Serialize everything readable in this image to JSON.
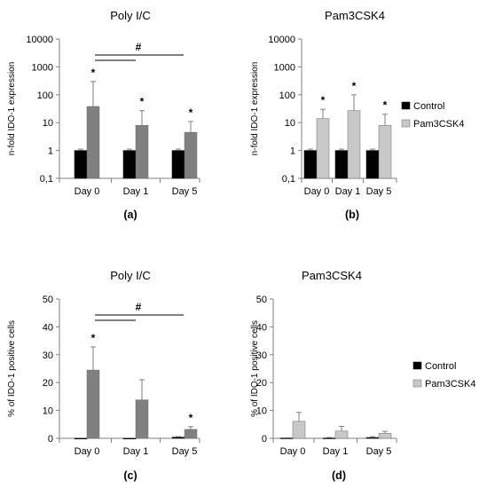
{
  "chart_data": [
    {
      "type": "bar",
      "panel_label": "(a)",
      "title": "Poly I/C",
      "ylabel": "n-fold IDO-1 expression",
      "scale": "log",
      "ylim": [
        0.1,
        10000
      ],
      "yticks": [
        0.1,
        1,
        10,
        100,
        1000,
        10000
      ],
      "ytick_labels": [
        "0,1",
        "1",
        "10",
        "100",
        "1000",
        "10000"
      ],
      "categories": [
        "Day 0",
        "Day 1",
        "Day 5"
      ],
      "series": [
        {
          "values": [
            1,
            1,
            1
          ],
          "errors": [
            1.12,
            1.12,
            1.12
          ],
          "color": "#000000"
        },
        {
          "values": [
            38,
            8,
            4.5
          ],
          "errors": [
            300,
            27,
            11
          ],
          "color": "#808080"
        }
      ],
      "significance_markers": [
        "*",
        "*",
        "*"
      ],
      "comparison_label": "#",
      "legend": null
    },
    {
      "type": "bar",
      "panel_label": "(b)",
      "title": "Pam3CSK4",
      "ylabel": "n-fold IDO-1 expression",
      "scale": "log",
      "ylim": [
        0.1,
        10000
      ],
      "yticks": [
        0.1,
        1,
        10,
        100,
        1000,
        10000
      ],
      "ytick_labels": [
        "0,1",
        "1",
        "10",
        "100",
        "1000",
        "10000"
      ],
      "categories": [
        "Day 0",
        "Day 1",
        "Day 5"
      ],
      "series": [
        {
          "name": "Control",
          "values": [
            1,
            1,
            1
          ],
          "errors": [
            1.12,
            1.12,
            1.12
          ],
          "color": "#000000"
        },
        {
          "name": "Pam3CSK4",
          "values": [
            14,
            27,
            8
          ],
          "errors": [
            30,
            100,
            20
          ],
          "color": "#c8c8c8"
        }
      ],
      "significance_markers": [
        "*",
        "*",
        "*"
      ],
      "comparison_label": null,
      "legend": {
        "position": "right",
        "entries": [
          "Control",
          "Pam3CSK4"
        ]
      }
    },
    {
      "type": "bar",
      "panel_label": "(c)",
      "title": "Poly I/C",
      "ylabel": "% of IDO-1 positive cells",
      "scale": "linear",
      "ylim": [
        0,
        50
      ],
      "yticks": [
        0,
        10,
        20,
        30,
        40,
        50
      ],
      "ytick_labels": [
        "0",
        "10",
        "20",
        "30",
        "40",
        "50"
      ],
      "categories": [
        "Day 0",
        "Day 1",
        "Day 5"
      ],
      "series": [
        {
          "values": [
            0,
            0,
            0.4
          ],
          "errors": [
            0,
            0,
            0.6
          ],
          "color": "#000000"
        },
        {
          "values": [
            24.5,
            13.8,
            3.2
          ],
          "errors": [
            32.8,
            21,
            4.2
          ],
          "color": "#808080"
        }
      ],
      "significance_markers": [
        "*",
        "",
        "*"
      ],
      "comparison_label": "#",
      "legend": null
    },
    {
      "type": "bar",
      "panel_label": "(d)",
      "title": "Pam3CSK4",
      "ylabel": "% of IDO-1 positive cells",
      "scale": "linear",
      "ylim": [
        0,
        50
      ],
      "yticks": [
        0,
        10,
        20,
        30,
        40,
        50
      ],
      "ytick_labels": [
        "0",
        "10",
        "20",
        "30",
        "40",
        "50"
      ],
      "categories": [
        "Day 0",
        "Day 1",
        "Day 5"
      ],
      "series": [
        {
          "name": "Control",
          "values": [
            0.1,
            0.1,
            0.3
          ],
          "errors": [
            0.2,
            0.3,
            0.6
          ],
          "color": "#000000"
        },
        {
          "name": "Pam3CSK4",
          "values": [
            6.1,
            2.6,
            1.8
          ],
          "errors": [
            9.3,
            4.3,
            2.5
          ],
          "color": "#c8c8c8"
        }
      ],
      "significance_markers": [
        "",
        "",
        ""
      ],
      "comparison_label": null,
      "legend": {
        "position": "right",
        "entries": [
          "Control",
          "Pam3CSK4"
        ]
      }
    }
  ]
}
